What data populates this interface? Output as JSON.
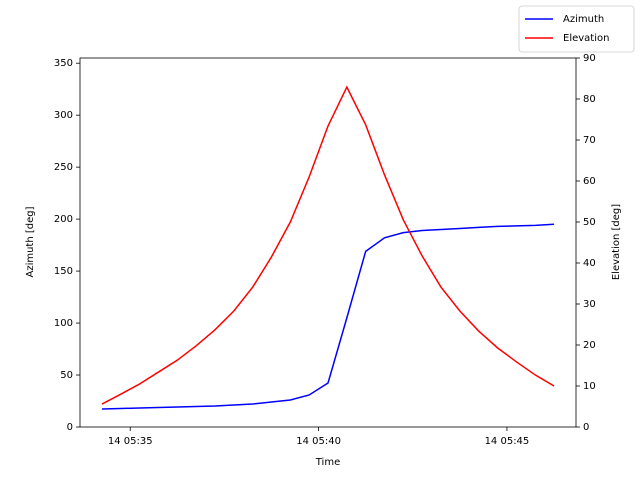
{
  "chart_data": {
    "type": "line",
    "x_label": "Time",
    "y_label": "Azimuth [deg]",
    "y2_label": "Elevation [deg]",
    "x": [
      "14 05:34:15",
      "14 05:34:45",
      "14 05:35:15",
      "14 05:35:45",
      "14 05:36:15",
      "14 05:36:45",
      "14 05:37:15",
      "14 05:37:45",
      "14 05:38:15",
      "14 05:38:45",
      "14 05:39:15",
      "14 05:39:45",
      "14 05:40:15",
      "14 05:40:45",
      "14 05:41:15",
      "14 05:41:45",
      "14 05:42:15",
      "14 05:42:45",
      "14 05:43:15",
      "14 05:43:45",
      "14 05:44:15",
      "14 05:44:45",
      "14 05:45:15",
      "14 05:45:45",
      "14 05:46:15"
    ],
    "series": [
      {
        "name": "Azimuth",
        "color": "#0000ff",
        "axis": "y",
        "values": [
          17.3,
          17.8,
          18.3,
          18.8,
          19.2,
          19.7,
          20.2,
          21.2,
          22.1,
          24,
          26,
          30.8,
          42.3,
          105,
          169,
          182,
          187,
          189,
          190,
          191,
          192,
          193,
          193.5,
          194,
          195
        ]
      },
      {
        "name": "Elevation",
        "color": "#ff0000",
        "axis": "y2",
        "values": [
          5.6,
          8,
          10.5,
          13.4,
          16.3,
          19.8,
          23.7,
          28.3,
          34.1,
          41.5,
          50,
          61,
          73.4,
          82.9,
          73.7,
          61.5,
          50.5,
          41.7,
          34.1,
          28.3,
          23.4,
          19.3,
          15.9,
          12.7,
          10
        ]
      }
    ],
    "xlim": [
      "14 05:33:40",
      "14 05:46:50"
    ],
    "xticks": [
      "14 05:35",
      "14 05:40",
      "14 05:45"
    ],
    "ylim": [
      0,
      355
    ],
    "yticks": [
      0,
      50,
      100,
      150,
      200,
      250,
      300,
      350
    ],
    "y2lim": [
      0,
      90
    ],
    "y2ticks": [
      0,
      10,
      20,
      30,
      40,
      50,
      60,
      70,
      80,
      90
    ],
    "legend": "upper right"
  }
}
